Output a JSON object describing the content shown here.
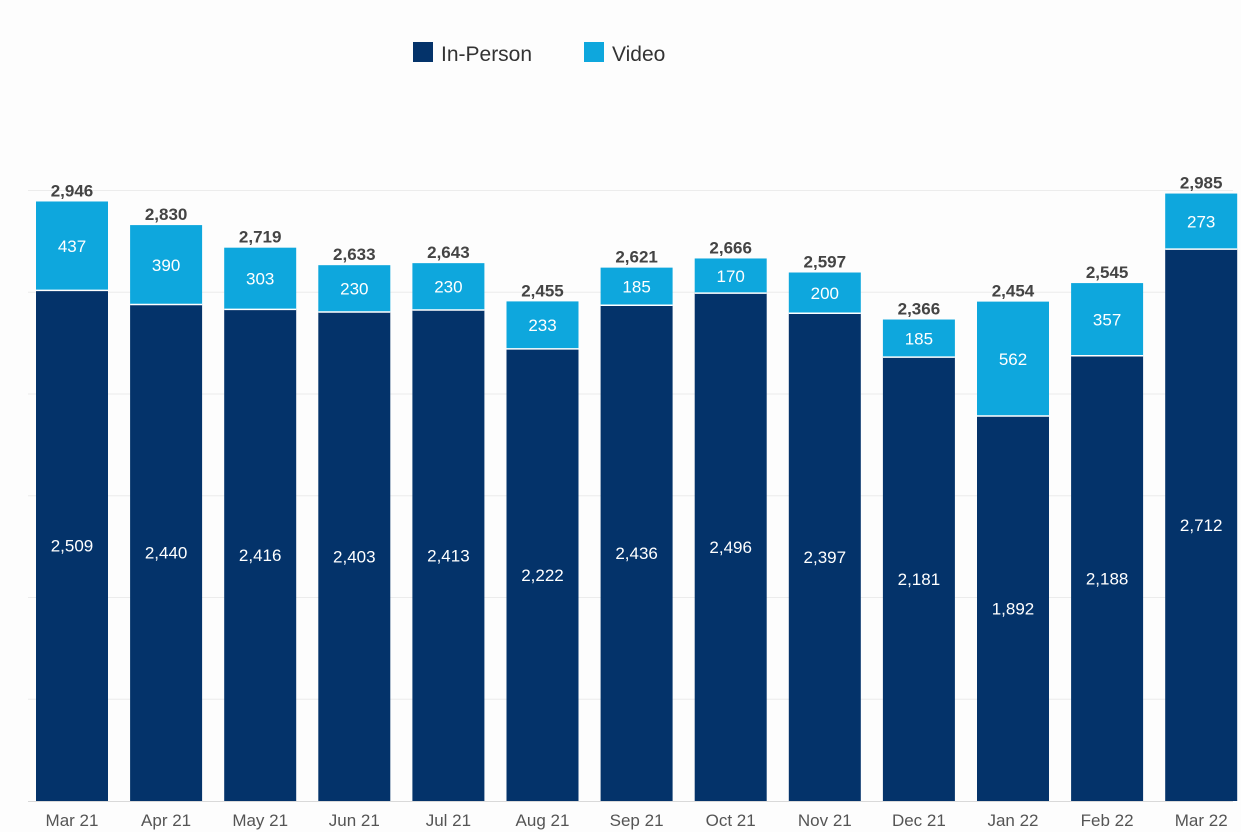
{
  "chart_data": {
    "type": "bar",
    "stacked": true,
    "title": "",
    "xlabel": "",
    "ylabel": "",
    "ylim": [
      0,
      3000
    ],
    "grid": true,
    "legend_position": "top-left",
    "categories": [
      "Mar 21",
      "Apr 21",
      "May 21",
      "Jun 21",
      "Jul 21",
      "Aug 21",
      "Sep 21",
      "Oct 21",
      "Nov 21",
      "Dec 21",
      "Jan 22",
      "Feb 22",
      "Mar 22"
    ],
    "series": [
      {
        "name": "In-Person",
        "color": "#04336a",
        "values": [
          2509,
          2440,
          2416,
          2403,
          2413,
          2222,
          2436,
          2496,
          2397,
          2181,
          1892,
          2188,
          2712
        ],
        "labels": [
          "2,509",
          "2,440",
          "2,416",
          "2,403",
          "2,413",
          "2,222",
          "2,436",
          "2,496",
          "2,397",
          "2,181",
          "1,892",
          "2,188",
          "2,712"
        ]
      },
      {
        "name": "Video",
        "color": "#0ea7dd",
        "values": [
          437,
          390,
          303,
          230,
          230,
          233,
          185,
          170,
          200,
          185,
          562,
          357,
          273
        ],
        "labels": [
          "437",
          "390",
          "303",
          "230",
          "230",
          "233",
          "185",
          "170",
          "200",
          "185",
          "562",
          "357",
          "273"
        ]
      }
    ],
    "totals": [
      2946,
      2830,
      2719,
      2633,
      2643,
      2455,
      2621,
      2666,
      2597,
      2366,
      2454,
      2545,
      2985
    ],
    "total_labels": [
      "2,946",
      "2,830",
      "2,719",
      "2,633",
      "2,643",
      "2,455",
      "2,621",
      "2,666",
      "2,597",
      "2,366",
      "2,454",
      "2,545",
      "2,985"
    ]
  }
}
